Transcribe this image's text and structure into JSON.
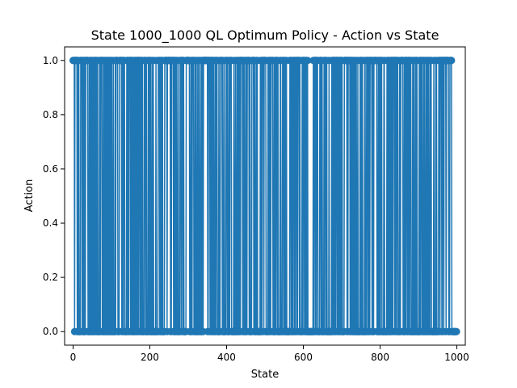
{
  "chart_data": {
    "type": "line",
    "title": "State 1000_1000 QL Optimum Policy - Action vs State",
    "xlabel": "State",
    "ylabel": "Action",
    "xlim": [
      -22,
      1022
    ],
    "ylim": [
      -0.05,
      1.05
    ],
    "xticks": [
      0,
      200,
      400,
      600,
      800,
      1000
    ],
    "yticks": [
      0.0,
      0.2,
      0.4,
      0.6,
      0.8,
      1.0
    ],
    "xtick_labels": [
      "0",
      "200",
      "400",
      "600",
      "800",
      "1000"
    ],
    "ytick_labels": [
      "0.0",
      "0.2",
      "0.4",
      "0.6",
      "0.8",
      "1.0"
    ],
    "grid": false,
    "series": [
      {
        "color": "#1f77b4",
        "marker": "circle",
        "x_start": 0,
        "x_end": 999,
        "x_step": 1,
        "values_description_note": null,
        "pattern": {
          "leading_ones": [
            0,
            1,
            2
          ],
          "trailing_zeros": [
            988,
            989,
            990,
            991,
            992,
            993,
            994,
            995,
            996,
            997,
            998,
            999
          ]
        }
      }
    ]
  }
}
